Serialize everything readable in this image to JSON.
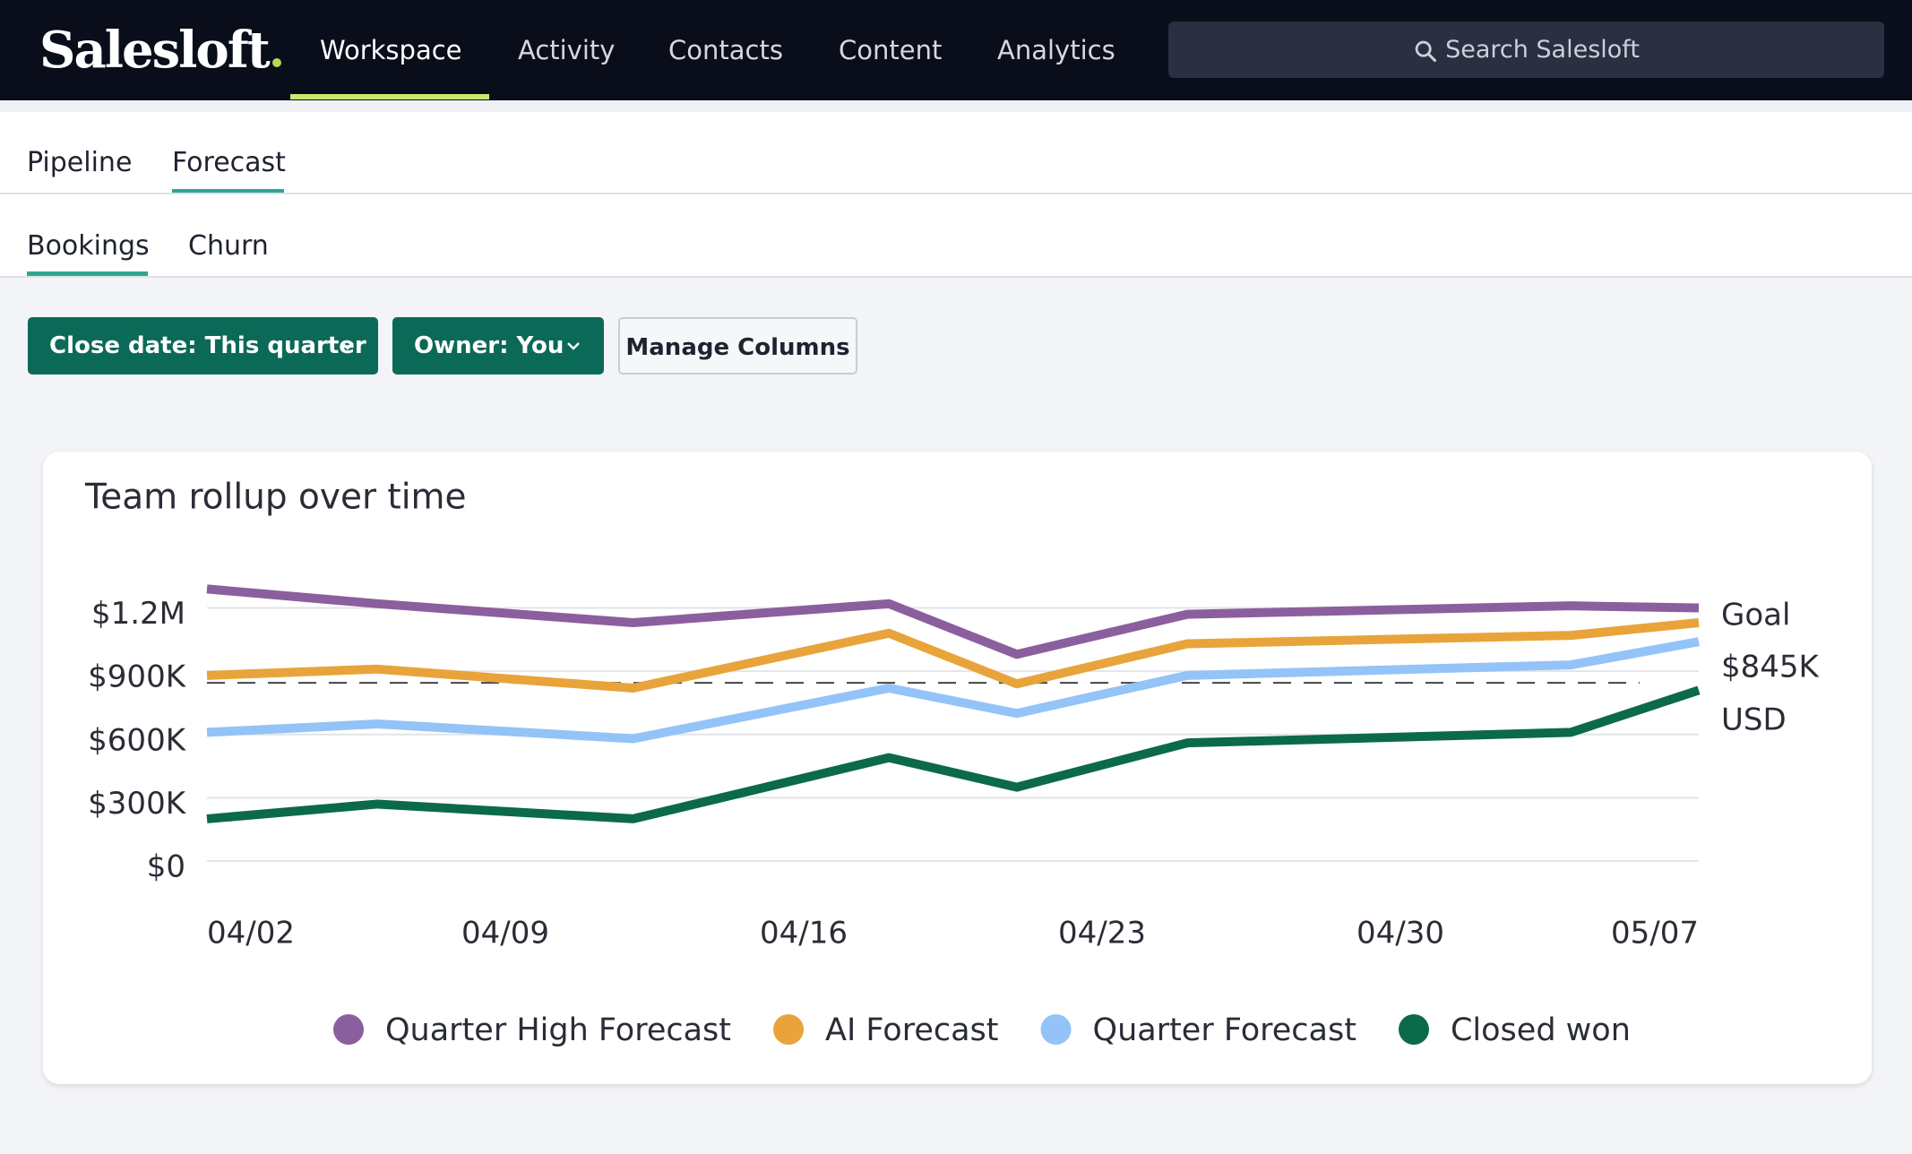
{
  "header": {
    "logo": "Salesloft",
    "nav": [
      "Workspace",
      "Activity",
      "Contacts",
      "Content",
      "Analytics"
    ],
    "search_placeholder": "Search Salesloft"
  },
  "tabs": [
    "Pipeline",
    "Forecast"
  ],
  "subtabs": [
    "Bookings",
    "Churn"
  ],
  "filters": [
    "Close date: This quarter",
    "Owner: You",
    "Manage Columns"
  ],
  "chart_data": {
    "type": "line",
    "title": "Team rollup over time",
    "x": [
      "04/02",
      "04/06",
      "04/12",
      "04/18",
      "04/21",
      "04/25",
      "05/04",
      "05/07"
    ],
    "xlim": [
      "04/02",
      "05/07"
    ],
    "xticks": [
      "04/02",
      "04/09",
      "04/16",
      "04/23",
      "04/30",
      "05/07"
    ],
    "ylim": [
      0,
      1300000
    ],
    "yticks": [
      {
        "value": 0,
        "label": "$0"
      },
      {
        "value": 300000,
        "label": "$300K"
      },
      {
        "value": 600000,
        "label": "$600K"
      },
      {
        "value": 900000,
        "label": "$900K"
      },
      {
        "value": 1200000,
        "label": "$1.2M"
      }
    ],
    "grid": true,
    "goal": {
      "label": "Goal",
      "value": 845000,
      "value_label": "$845K",
      "unit": "USD"
    },
    "series": [
      {
        "name": "Quarter High Forecast",
        "color": "#8b5f9d",
        "values": [
          1290000,
          1220000,
          1130000,
          1220000,
          980000,
          1170000,
          1210000,
          1200000
        ]
      },
      {
        "name": "AI Forecast",
        "color": "#e8a43b",
        "values": [
          880000,
          910000,
          820000,
          1080000,
          840000,
          1030000,
          1070000,
          1130000
        ]
      },
      {
        "name": "Quarter Forecast",
        "color": "#93c3f7",
        "values": [
          610000,
          650000,
          580000,
          820000,
          700000,
          880000,
          930000,
          1040000
        ]
      },
      {
        "name": "Closed won",
        "color": "#0b6a4a",
        "values": [
          200000,
          270000,
          200000,
          490000,
          350000,
          560000,
          610000,
          810000
        ]
      }
    ]
  }
}
